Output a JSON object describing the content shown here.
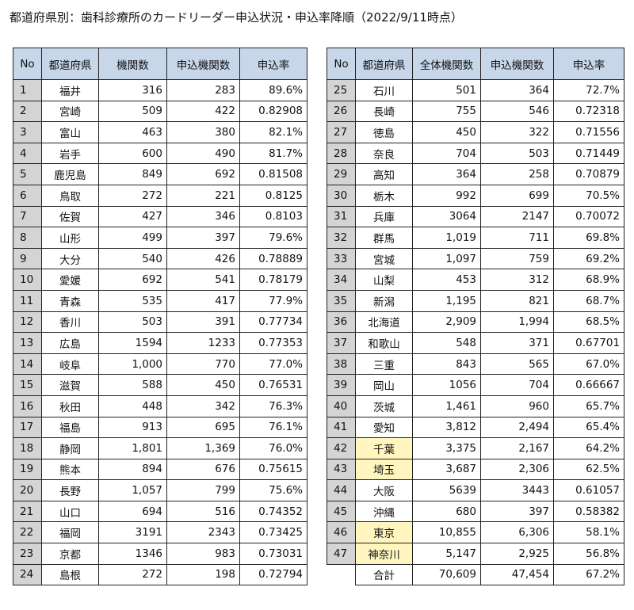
{
  "title": "都道府県別：歯科診療所のカードリーダー申込状況・申込率降順（2022/9/11時点）",
  "left_table": {
    "headers": [
      "No",
      "都道府県",
      "機関数",
      "申込機関数",
      "申込率"
    ],
    "rows": [
      {
        "no": "1",
        "pref": "福井",
        "count": "316",
        "applied": "283",
        "rate": "89.6%"
      },
      {
        "no": "2",
        "pref": "宮崎",
        "count": "509",
        "applied": "422",
        "rate": "0.82908"
      },
      {
        "no": "3",
        "pref": "富山",
        "count": "463",
        "applied": "380",
        "rate": "82.1%"
      },
      {
        "no": "4",
        "pref": "岩手",
        "count": "600",
        "applied": "490",
        "rate": "81.7%"
      },
      {
        "no": "5",
        "pref": "鹿児島",
        "count": "849",
        "applied": "692",
        "rate": "0.81508"
      },
      {
        "no": "6",
        "pref": "鳥取",
        "count": "272",
        "applied": "221",
        "rate": "0.8125"
      },
      {
        "no": "7",
        "pref": "佐賀",
        "count": "427",
        "applied": "346",
        "rate": "0.8103"
      },
      {
        "no": "8",
        "pref": "山形",
        "count": "499",
        "applied": "397",
        "rate": "79.6%"
      },
      {
        "no": "9",
        "pref": "大分",
        "count": "540",
        "applied": "426",
        "rate": "0.78889"
      },
      {
        "no": "10",
        "pref": "愛媛",
        "count": "692",
        "applied": "541",
        "rate": "0.78179"
      },
      {
        "no": "11",
        "pref": "青森",
        "count": "535",
        "applied": "417",
        "rate": "77.9%"
      },
      {
        "no": "12",
        "pref": "香川",
        "count": "503",
        "applied": "391",
        "rate": "0.77734"
      },
      {
        "no": "13",
        "pref": "広島",
        "count": "1594",
        "applied": "1233",
        "rate": "0.77353"
      },
      {
        "no": "14",
        "pref": "岐阜",
        "count": "1,000",
        "applied": "770",
        "rate": "77.0%"
      },
      {
        "no": "15",
        "pref": "滋賀",
        "count": "588",
        "applied": "450",
        "rate": "0.76531"
      },
      {
        "no": "16",
        "pref": "秋田",
        "count": "448",
        "applied": "342",
        "rate": "76.3%"
      },
      {
        "no": "17",
        "pref": "福島",
        "count": "913",
        "applied": "695",
        "rate": "76.1%"
      },
      {
        "no": "18",
        "pref": "静岡",
        "count": "1,801",
        "applied": "1,369",
        "rate": "76.0%"
      },
      {
        "no": "19",
        "pref": "熊本",
        "count": "894",
        "applied": "676",
        "rate": "0.75615"
      },
      {
        "no": "20",
        "pref": "長野",
        "count": "1,057",
        "applied": "799",
        "rate": "75.6%"
      },
      {
        "no": "21",
        "pref": "山口",
        "count": "694",
        "applied": "516",
        "rate": "0.74352"
      },
      {
        "no": "22",
        "pref": "福岡",
        "count": "3191",
        "applied": "2343",
        "rate": "0.73425"
      },
      {
        "no": "23",
        "pref": "京都",
        "count": "1346",
        "applied": "983",
        "rate": "0.73031"
      },
      {
        "no": "24",
        "pref": "島根",
        "count": "272",
        "applied": "198",
        "rate": "0.72794"
      }
    ]
  },
  "right_table": {
    "headers": [
      "No",
      "都道府県",
      "全体機関数",
      "申込機関数",
      "申込率"
    ],
    "rows": [
      {
        "no": "25",
        "pref": "石川",
        "count": "501",
        "applied": "364",
        "rate": "72.7%"
      },
      {
        "no": "26",
        "pref": "長崎",
        "count": "755",
        "applied": "546",
        "rate": "0.72318"
      },
      {
        "no": "27",
        "pref": "徳島",
        "count": "450",
        "applied": "322",
        "rate": "0.71556"
      },
      {
        "no": "28",
        "pref": "奈良",
        "count": "704",
        "applied": "503",
        "rate": "0.71449"
      },
      {
        "no": "29",
        "pref": "高知",
        "count": "364",
        "applied": "258",
        "rate": "0.70879"
      },
      {
        "no": "30",
        "pref": "栃木",
        "count": "992",
        "applied": "699",
        "rate": "70.5%"
      },
      {
        "no": "31",
        "pref": "兵庫",
        "count": "3064",
        "applied": "2147",
        "rate": "0.70072"
      },
      {
        "no": "32",
        "pref": "群馬",
        "count": "1,019",
        "applied": "711",
        "rate": "69.8%"
      },
      {
        "no": "33",
        "pref": "宮城",
        "count": "1,097",
        "applied": "759",
        "rate": "69.2%"
      },
      {
        "no": "34",
        "pref": "山梨",
        "count": "453",
        "applied": "312",
        "rate": "68.9%"
      },
      {
        "no": "35",
        "pref": "新潟",
        "count": "1,195",
        "applied": "821",
        "rate": "68.7%"
      },
      {
        "no": "36",
        "pref": "北海道",
        "count": "2,909",
        "applied": "1,994",
        "rate": "68.5%"
      },
      {
        "no": "37",
        "pref": "和歌山",
        "count": "548",
        "applied": "371",
        "rate": "0.67701"
      },
      {
        "no": "38",
        "pref": "三重",
        "count": "843",
        "applied": "565",
        "rate": "67.0%"
      },
      {
        "no": "39",
        "pref": "岡山",
        "count": "1056",
        "applied": "704",
        "rate": "0.66667"
      },
      {
        "no": "40",
        "pref": "茨城",
        "count": "1,461",
        "applied": "960",
        "rate": "65.7%"
      },
      {
        "no": "41",
        "pref": "愛知",
        "count": "3,812",
        "applied": "2,494",
        "rate": "65.4%"
      },
      {
        "no": "42",
        "pref": "千葉",
        "count": "3,375",
        "applied": "2,167",
        "rate": "64.2%",
        "highlight": true
      },
      {
        "no": "43",
        "pref": "埼玉",
        "count": "3,687",
        "applied": "2,306",
        "rate": "62.5%",
        "highlight": true
      },
      {
        "no": "44",
        "pref": "大阪",
        "count": "5639",
        "applied": "3443",
        "rate": "0.61057"
      },
      {
        "no": "45",
        "pref": "沖縄",
        "count": "680",
        "applied": "397",
        "rate": "0.58382"
      },
      {
        "no": "46",
        "pref": "東京",
        "count": "10,855",
        "applied": "6,306",
        "rate": "58.1%",
        "highlight": true
      },
      {
        "no": "47",
        "pref": "神奈川",
        "count": "5,147",
        "applied": "2,925",
        "rate": "56.8%",
        "highlight": true
      }
    ],
    "total": {
      "label": "合計",
      "count": "70,609",
      "applied": "47,454",
      "rate": "67.2%"
    }
  },
  "colors": {
    "header_bg": "#c8d6ea",
    "no_bg": "#d4d4d4",
    "highlight_bg": "#fff6bf"
  }
}
